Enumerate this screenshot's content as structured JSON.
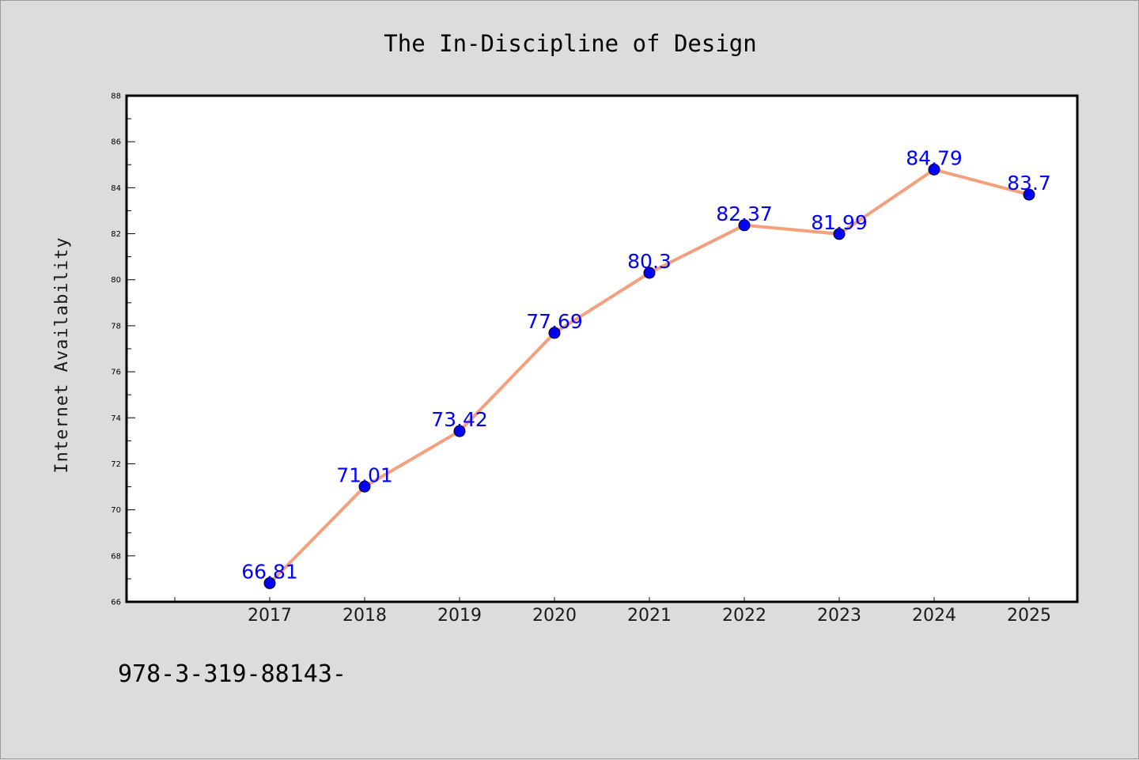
{
  "chart_data": {
    "type": "line",
    "title": "The In-Discipline of Design",
    "xlabel": "",
    "ylabel": "Internet Availability",
    "categories": [
      "2017",
      "2018",
      "2019",
      "2020",
      "2021",
      "2022",
      "2023",
      "2024",
      "2025"
    ],
    "series": [
      {
        "values": [
          66.81,
          71.01,
          73.42,
          77.69,
          80.3,
          82.37,
          81.99,
          84.79,
          83.7
        ],
        "labels": [
          "66.81",
          "71.01",
          "73.42",
          "77.69",
          "80.3",
          "82.37",
          "81.99",
          "84.79",
          "83.7"
        ]
      }
    ],
    "ylim": [
      66,
      88
    ],
    "yticks": [
      "66",
      "68",
      "70",
      "72",
      "74",
      "76",
      "78",
      "80",
      "82",
      "84",
      "86",
      "88"
    ],
    "grid": false,
    "legend": "none",
    "colors": {
      "line": "#f4a07c",
      "marker": "#0000ff",
      "data_label": "#0000ff",
      "plot_background": "#ffffff",
      "figure_background": "#dcdcdc"
    }
  },
  "footnote": "978-3-319-88143-"
}
